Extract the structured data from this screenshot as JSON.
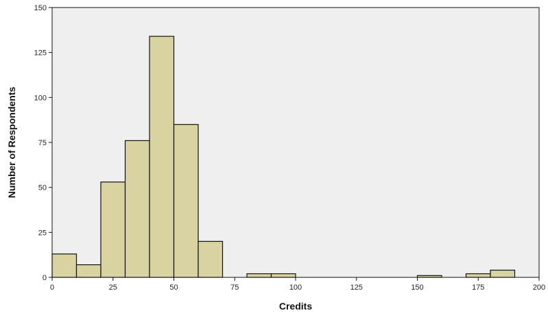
{
  "chart_data": {
    "type": "bar",
    "subtype": "histogram",
    "title": "",
    "xlabel": "Credits",
    "ylabel": "Number of Respondents",
    "xlim": [
      0,
      200
    ],
    "ylim": [
      0,
      150
    ],
    "bin_width": 10,
    "bins": [
      {
        "x0": 0,
        "x1": 10,
        "value": 13
      },
      {
        "x0": 10,
        "x1": 20,
        "value": 7
      },
      {
        "x0": 20,
        "x1": 30,
        "value": 53
      },
      {
        "x0": 30,
        "x1": 40,
        "value": 76
      },
      {
        "x0": 40,
        "x1": 50,
        "value": 134
      },
      {
        "x0": 50,
        "x1": 60,
        "value": 85
      },
      {
        "x0": 60,
        "x1": 70,
        "value": 20
      },
      {
        "x0": 80,
        "x1": 90,
        "value": 2
      },
      {
        "x0": 90,
        "x1": 100,
        "value": 2
      },
      {
        "x0": 150,
        "x1": 160,
        "value": 1
      },
      {
        "x0": 170,
        "x1": 180,
        "value": 2
      },
      {
        "x0": 180,
        "x1": 190,
        "value": 4
      }
    ],
    "x_ticks": [
      "0",
      "25",
      "50",
      "75",
      "100",
      "125",
      "150",
      "175",
      "200"
    ],
    "y_ticks": [
      "0",
      "25",
      "50",
      "75",
      "100",
      "125",
      "150"
    ],
    "grid": false,
    "colors": {
      "bar_fill": "#d8d3a0",
      "bar_stroke": "#111111",
      "plot_background": "#efefef"
    }
  }
}
